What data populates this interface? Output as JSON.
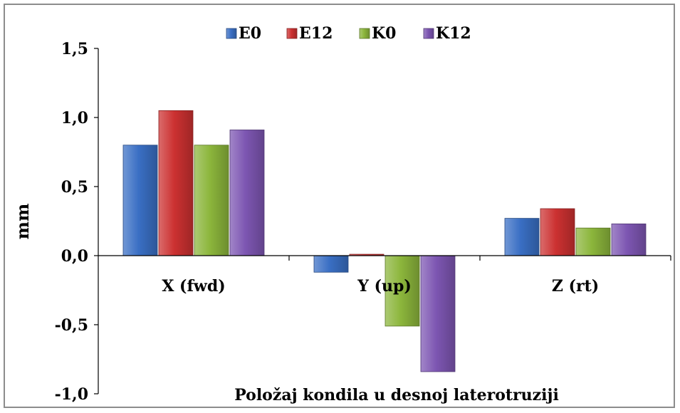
{
  "chart_data": {
    "type": "bar",
    "categories": [
      "X (fwd)",
      "Y (up)",
      "Z (rt)"
    ],
    "series": [
      {
        "name": "E0",
        "values": [
          0.8,
          -0.12,
          0.27
        ],
        "color": "#3a6fc4"
      },
      {
        "name": "E12",
        "values": [
          1.05,
          0.01,
          0.34
        ],
        "color": "#cc3131"
      },
      {
        "name": "K0",
        "values": [
          0.8,
          -0.51,
          0.2
        ],
        "color": "#8cb63c"
      },
      {
        "name": "K12",
        "values": [
          0.91,
          -0.84,
          0.23
        ],
        "color": "#7d56b2"
      }
    ],
    "title": "",
    "xlabel": "Položaj kondila u desnoj laterotruziji",
    "ylabel": "mm",
    "ylim": [
      -1.0,
      1.5
    ],
    "yticks": [
      1.5,
      1.0,
      0.5,
      0.0,
      -0.5,
      -1.0
    ],
    "ytick_labels": [
      "1,5",
      "1,0",
      "0,5",
      "0,0",
      "-0,5",
      "-1,0"
    ],
    "grid": false,
    "legend_position": "top-center"
  }
}
